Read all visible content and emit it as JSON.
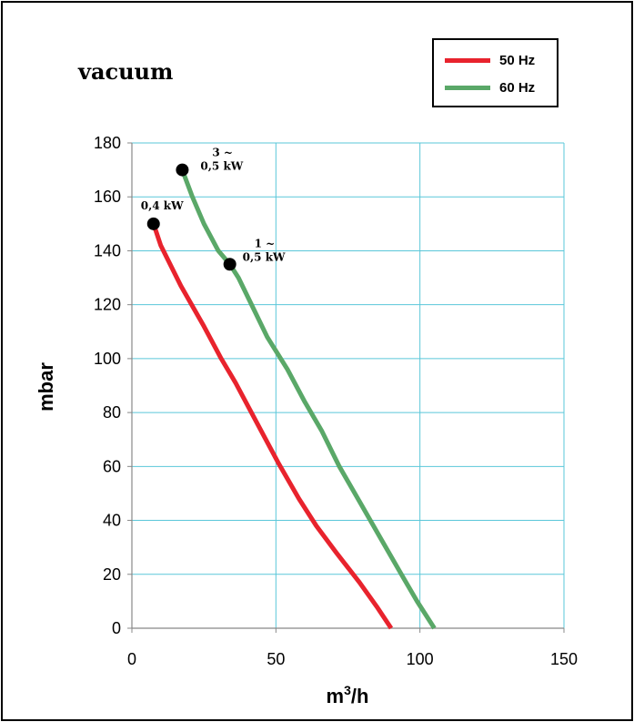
{
  "chart_data": {
    "type": "line",
    "title": "vacuum",
    "xlabel": "m3/h",
    "ylabel": "mbar",
    "xlim": [
      0,
      150
    ],
    "ylim": [
      0,
      180
    ],
    "x_ticks": [
      0,
      50,
      100,
      150
    ],
    "y_ticks": [
      0,
      20,
      40,
      60,
      80,
      100,
      120,
      140,
      160,
      180
    ],
    "grid": true,
    "legend_position": "top-right",
    "series": [
      {
        "name": "50 Hz",
        "color": "#e8232d",
        "points": [
          [
            7.5,
            150
          ],
          [
            10,
            142
          ],
          [
            17,
            127
          ],
          [
            25,
            112
          ],
          [
            31,
            100
          ],
          [
            36,
            91
          ],
          [
            44,
            75
          ],
          [
            51,
            61
          ],
          [
            58,
            48
          ],
          [
            64,
            38
          ],
          [
            71,
            28
          ],
          [
            79,
            17
          ],
          [
            85,
            8
          ],
          [
            90,
            0
          ]
        ]
      },
      {
        "name": "60 Hz",
        "color": "#5aa868",
        "points": [
          [
            17.5,
            170
          ],
          [
            21,
            160
          ],
          [
            25,
            150
          ],
          [
            30,
            140
          ],
          [
            34,
            135
          ],
          [
            37,
            130
          ],
          [
            42,
            119
          ],
          [
            47,
            108
          ],
          [
            54,
            96
          ],
          [
            60,
            84
          ],
          [
            66,
            73
          ],
          [
            72,
            60
          ],
          [
            79,
            47
          ],
          [
            86,
            34
          ],
          [
            93,
            21
          ],
          [
            99,
            10
          ],
          [
            105,
            0
          ]
        ]
      }
    ],
    "markers": [
      {
        "series": "50 Hz",
        "x": 7.5,
        "y": 150,
        "label": "0,4 kW"
      },
      {
        "series": "60 Hz",
        "x": 17.5,
        "y": 170,
        "label": "3 ~\n0,5 kW"
      },
      {
        "series": "60 Hz",
        "x": 34,
        "y": 135,
        "label": "1 ~\n0,5 kW"
      }
    ]
  },
  "legend": {
    "items": [
      {
        "label": "50 Hz",
        "color": "#e8232d"
      },
      {
        "label": "60 Hz",
        "color": "#5aa868"
      }
    ]
  },
  "colors": {
    "grid": "#5ac7d9",
    "axis": "#888888"
  }
}
